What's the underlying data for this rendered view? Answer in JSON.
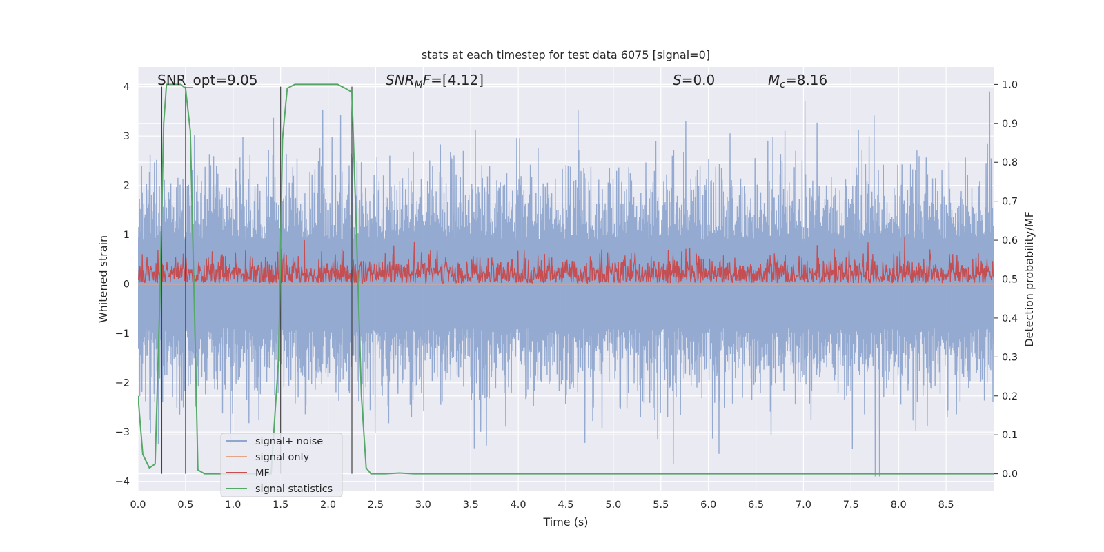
{
  "chart_data": {
    "type": "line",
    "title": "stats at each timestep for test data 6075 [signal=0]",
    "xlabel": "Time (s)",
    "ylabel": "Whitened strain",
    "ylabel_right": "Detection probability/MF",
    "xlim": [
      0,
      9.0
    ],
    "ylim": [
      -4.2,
      4.4
    ],
    "ylim_right": [
      -0.045,
      1.045
    ],
    "x_ticks": [
      "0.0",
      "0.5",
      "1.0",
      "1.5",
      "2.0",
      "2.5",
      "3.0",
      "3.5",
      "4.0",
      "4.5",
      "5.0",
      "5.5",
      "6.0",
      "6.5",
      "7.0",
      "7.5",
      "8.0",
      "8.5"
    ],
    "y_ticks": [
      "4",
      "3",
      "2",
      "1",
      "0",
      "−1",
      "−2",
      "−3",
      "−4"
    ],
    "y_ticks_right": [
      "1.0",
      "0.9",
      "0.8",
      "0.7",
      "0.6",
      "0.5",
      "0.4",
      "0.3",
      "0.2",
      "0.1",
      "0.0"
    ],
    "annotations": {
      "snr_opt": "SNR_opt=9.05",
      "snr_mf": "=[4.12]",
      "s": "=0.0",
      "mc": "=8.16"
    },
    "series": [
      {
        "name": "signal+ noise",
        "color": "#8fa6cf",
        "description": "whitened strain, amplitude roughly within [-3.7, 4.0]"
      },
      {
        "name": "signal only",
        "color": "#e8a585",
        "values_constant": 0.0
      },
      {
        "name": "MF",
        "color": "#c44e52",
        "range": [
          0.0,
          0.95
        ]
      },
      {
        "name": "signal statistics",
        "color": "#55a868",
        "axis": "right",
        "x": [
          0.0,
          0.05,
          0.12,
          0.18,
          0.23,
          0.27,
          0.3,
          0.33,
          0.38,
          0.45,
          0.5,
          0.55,
          0.6,
          0.63,
          0.7,
          0.8,
          1.0,
          1.2,
          1.4,
          1.48,
          1.52,
          1.57,
          1.65,
          1.8,
          2.0,
          2.1,
          2.18,
          2.25,
          2.3,
          2.35,
          2.4,
          2.45,
          2.5,
          2.6,
          2.75,
          2.9,
          3.5,
          4.5,
          5.5,
          6.5,
          7.0,
          8.0,
          9.0
        ],
        "values": [
          0.2,
          0.05,
          0.015,
          0.025,
          0.45,
          0.9,
          1.0,
          1.0,
          1.0,
          1.0,
          0.99,
          0.88,
          0.35,
          0.01,
          0.0,
          0.0,
          0.0,
          0.0,
          0.0,
          0.3,
          0.86,
          0.99,
          1.0,
          1.0,
          1.0,
          1.0,
          0.99,
          0.98,
          0.6,
          0.2,
          0.015,
          0.0,
          0.0,
          0.0,
          0.002,
          0.0,
          0.0,
          0.0,
          0.0,
          0.0,
          0.0,
          0.0,
          0.0
        ]
      }
    ],
    "vertical_lines_x": [
      0.25,
      0.5,
      1.5,
      2.25
    ],
    "legend": [
      "signal+ noise",
      "signal only",
      "MF",
      "signal statistics"
    ]
  }
}
